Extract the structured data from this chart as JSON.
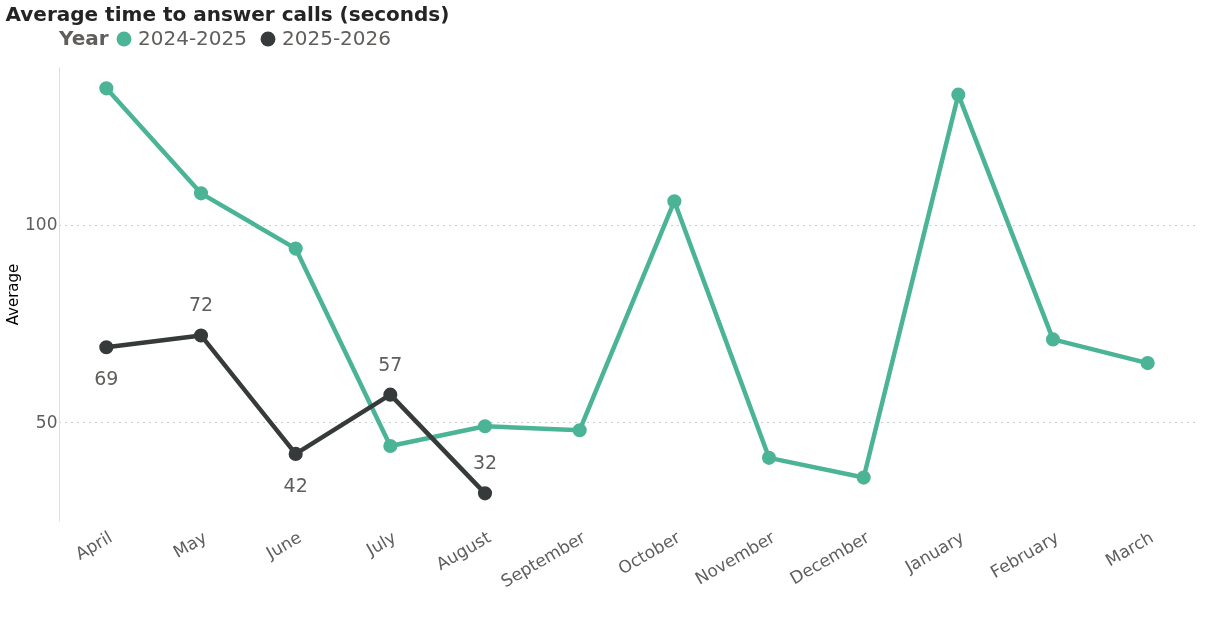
{
  "chart_data": {
    "type": "line",
    "title": "Average time to answer calls (seconds)",
    "ylabel": "Average",
    "legend_title": "Year",
    "legend": "top left",
    "categories": [
      "April",
      "May",
      "June",
      "July",
      "August",
      "September",
      "October",
      "November",
      "December",
      "January",
      "February",
      "March"
    ],
    "series": [
      {
        "name": "2024-2025",
        "color": "#4bb496",
        "values": [
          134.6,
          108,
          94,
          44,
          49,
          48,
          106,
          41,
          36,
          133,
          71,
          65
        ]
      },
      {
        "name": "2025-2026",
        "color": "#373a3a",
        "values": [
          69,
          72,
          42,
          57,
          32,
          null,
          null,
          null,
          null,
          null,
          null,
          null
        ],
        "value_labels": [
          "69",
          "72",
          "42",
          "57",
          "32",
          null,
          null,
          null,
          null,
          null,
          null,
          null
        ]
      }
    ],
    "ylim": [
      25,
      140
    ],
    "yticks": [
      50,
      100
    ],
    "grid": "y",
    "marker": "circle",
    "line_style": "solid"
  }
}
